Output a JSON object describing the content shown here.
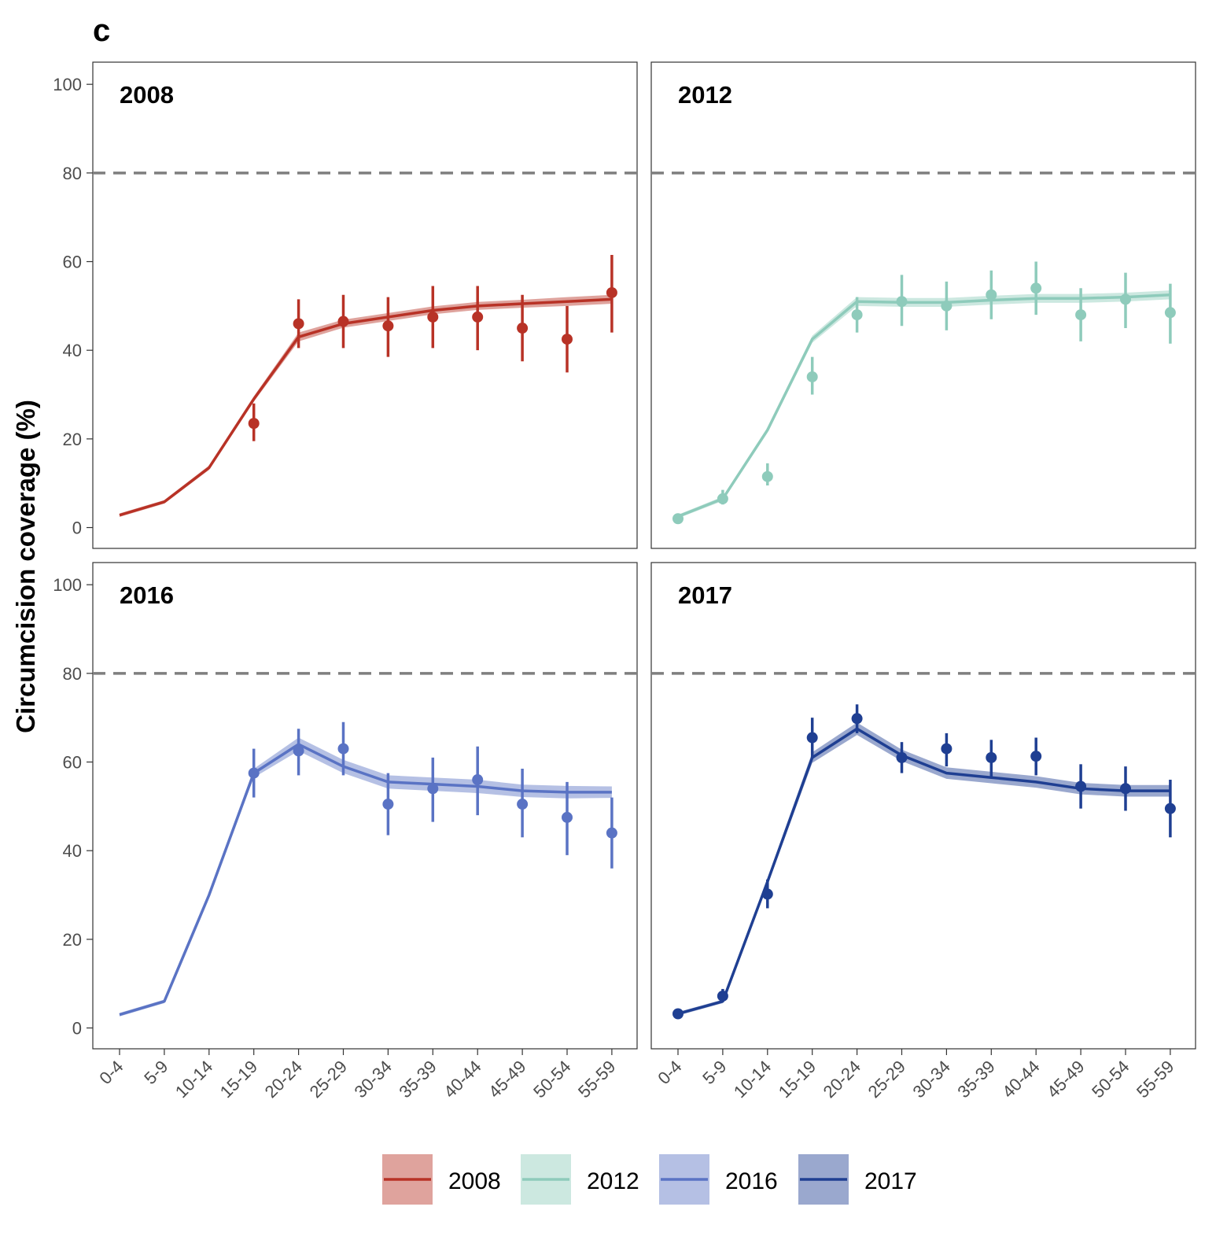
{
  "figure_label": "c",
  "colors": {
    "2008": "#b83226",
    "2012": "#8ecbbb",
    "2016": "#5a73c4",
    "2017": "#1f3f92",
    "reference_line": "#7f7f7f"
  },
  "chart_data": {
    "type": "line",
    "ylabel": "Circumcision coverage (%)",
    "xlabel": "",
    "ylim": [
      0,
      100
    ],
    "yticks": [
      0,
      20,
      40,
      60,
      80,
      100
    ],
    "reference_line": 80,
    "categories": [
      "0-4",
      "5-9",
      "10-14",
      "15-19",
      "20-24",
      "25-29",
      "30-34",
      "35-39",
      "40-44",
      "45-49",
      "50-54",
      "55-59"
    ],
    "legend": [
      "2008",
      "2012",
      "2016",
      "2017"
    ],
    "legend_position": "bottom",
    "panels": [
      {
        "title": "2008",
        "model": [
          2.8,
          5.8,
          13.5,
          29,
          43,
          46,
          47.5,
          49,
          50,
          50.5,
          51,
          51.5
        ],
        "band": [
          0.4,
          0.4,
          0.5,
          0.6,
          1.0,
          0.9,
          0.9,
          0.9,
          0.9,
          0.9,
          1.0,
          1.0
        ],
        "survey": [
          {
            "cat": "15-19",
            "y": 23.5,
            "lo": 19.5,
            "hi": 28
          },
          {
            "cat": "20-24",
            "y": 46,
            "lo": 40.5,
            "hi": 51.5
          },
          {
            "cat": "25-29",
            "y": 46.5,
            "lo": 40.5,
            "hi": 52.5
          },
          {
            "cat": "30-34",
            "y": 45.5,
            "lo": 38.5,
            "hi": 52
          },
          {
            "cat": "35-39",
            "y": 47.5,
            "lo": 40.5,
            "hi": 54.5
          },
          {
            "cat": "40-44",
            "y": 47.5,
            "lo": 40,
            "hi": 54.5
          },
          {
            "cat": "45-49",
            "y": 45,
            "lo": 37.5,
            "hi": 52.5
          },
          {
            "cat": "50-54",
            "y": 42.5,
            "lo": 35,
            "hi": 50
          },
          {
            "cat": "55-59",
            "y": 53,
            "lo": 44,
            "hi": 61.5
          }
        ]
      },
      {
        "title": "2012",
        "model": [
          2.5,
          6.5,
          22,
          42.5,
          51,
          50.8,
          50.8,
          51.3,
          51.7,
          51.7,
          52,
          52.5
        ],
        "band": [
          0.4,
          0.5,
          0.6,
          0.8,
          1.0,
          1.0,
          1.0,
          1.0,
          1.0,
          1.0,
          1.0,
          1.0
        ],
        "survey": [
          {
            "cat": "0-4",
            "y": 2,
            "lo": 1.3,
            "hi": 2.8
          },
          {
            "cat": "5-9",
            "y": 6.5,
            "lo": 5.2,
            "hi": 8.5
          },
          {
            "cat": "10-14",
            "y": 11.5,
            "lo": 9.5,
            "hi": 14.5
          },
          {
            "cat": "15-19",
            "y": 34,
            "lo": 30,
            "hi": 38.5
          },
          {
            "cat": "20-24",
            "y": 48,
            "lo": 44,
            "hi": 52
          },
          {
            "cat": "25-29",
            "y": 51,
            "lo": 45.5,
            "hi": 57
          },
          {
            "cat": "30-34",
            "y": 50,
            "lo": 44.5,
            "hi": 55.5
          },
          {
            "cat": "35-39",
            "y": 52.5,
            "lo": 47,
            "hi": 58
          },
          {
            "cat": "40-44",
            "y": 54,
            "lo": 48,
            "hi": 60
          },
          {
            "cat": "45-49",
            "y": 48,
            "lo": 42,
            "hi": 54
          },
          {
            "cat": "50-54",
            "y": 51.5,
            "lo": 45,
            "hi": 57.5
          },
          {
            "cat": "55-59",
            "y": 48.5,
            "lo": 41.5,
            "hi": 55
          }
        ]
      },
      {
        "title": "2016",
        "model": [
          3,
          6,
          30,
          57.5,
          64,
          59,
          55.5,
          55,
          54.5,
          53.5,
          53.2,
          53.2
        ],
        "band": [
          0.4,
          0.4,
          0.6,
          1.0,
          1.5,
          1.5,
          1.5,
          1.5,
          1.5,
          1.4,
          1.4,
          1.3
        ],
        "survey": [
          {
            "cat": "15-19",
            "y": 57.5,
            "lo": 52,
            "hi": 63
          },
          {
            "cat": "20-24",
            "y": 62.5,
            "lo": 57,
            "hi": 67.5
          },
          {
            "cat": "25-29",
            "y": 63,
            "lo": 57,
            "hi": 69
          },
          {
            "cat": "30-34",
            "y": 50.5,
            "lo": 43.5,
            "hi": 57.5
          },
          {
            "cat": "35-39",
            "y": 54,
            "lo": 46.5,
            "hi": 61
          },
          {
            "cat": "40-44",
            "y": 56,
            "lo": 48,
            "hi": 63.5
          },
          {
            "cat": "45-49",
            "y": 50.5,
            "lo": 43,
            "hi": 58.5
          },
          {
            "cat": "50-54",
            "y": 47.5,
            "lo": 39,
            "hi": 55.5
          },
          {
            "cat": "55-59",
            "y": 44,
            "lo": 36,
            "hi": 52
          }
        ]
      },
      {
        "title": "2017",
        "model": [
          3.2,
          6,
          33,
          61,
          67.5,
          61.5,
          57.5,
          56.5,
          55.5,
          54,
          53.5,
          53.5
        ],
        "band": [
          0.4,
          0.4,
          0.8,
          1.2,
          1.4,
          1.3,
          1.3,
          1.3,
          1.3,
          1.3,
          1.3,
          1.3
        ],
        "survey": [
          {
            "cat": "0-4",
            "y": 3.2,
            "lo": 2.4,
            "hi": 4
          },
          {
            "cat": "5-9",
            "y": 7.2,
            "lo": 6,
            "hi": 8.8
          },
          {
            "cat": "10-14",
            "y": 30.2,
            "lo": 27,
            "hi": 33.5
          },
          {
            "cat": "15-19",
            "y": 65.5,
            "lo": 61,
            "hi": 70
          },
          {
            "cat": "20-24",
            "y": 69.8,
            "lo": 66.5,
            "hi": 73
          },
          {
            "cat": "25-29",
            "y": 61,
            "lo": 57.5,
            "hi": 64.5
          },
          {
            "cat": "30-34",
            "y": 63,
            "lo": 59,
            "hi": 66.5
          },
          {
            "cat": "35-39",
            "y": 61,
            "lo": 56.5,
            "hi": 65
          },
          {
            "cat": "40-44",
            "y": 61.3,
            "lo": 57,
            "hi": 65.5
          },
          {
            "cat": "45-49",
            "y": 54.5,
            "lo": 49.5,
            "hi": 59.5
          },
          {
            "cat": "50-54",
            "y": 54,
            "lo": 49,
            "hi": 59
          },
          {
            "cat": "55-59",
            "y": 49.5,
            "lo": 43,
            "hi": 56
          }
        ]
      }
    ]
  }
}
